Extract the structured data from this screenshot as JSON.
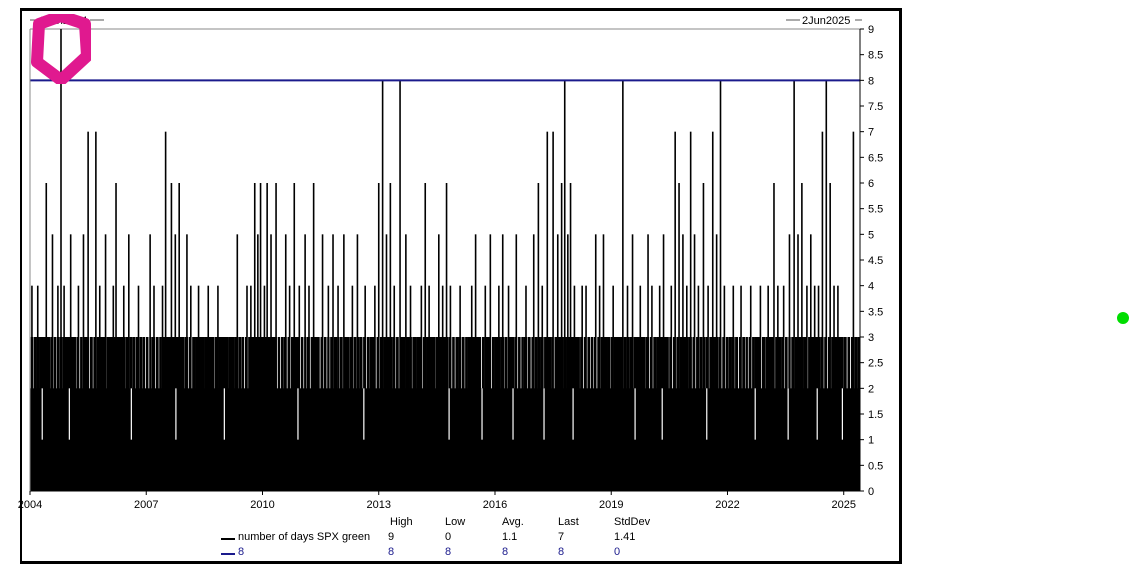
{
  "chart_data": {
    "type": "bar",
    "range_labels": {
      "start": "1Jan2004",
      "end": "2Jun2025"
    },
    "xlim": [
      2004.0,
      2025.42
    ],
    "ylim": [
      0,
      9
    ],
    "x_ticks": [
      {
        "x": 2004,
        "label": "2004"
      },
      {
        "x": 2007,
        "label": "2007"
      },
      {
        "x": 2010,
        "label": "2010"
      },
      {
        "x": 2013,
        "label": "2013"
      },
      {
        "x": 2016,
        "label": "2016"
      },
      {
        "x": 2019,
        "label": "2019"
      },
      {
        "x": 2022,
        "label": "2022"
      },
      {
        "x": 2025,
        "label": "2025"
      }
    ],
    "y_ticks": [
      "0",
      "0.5",
      "1",
      "1.5",
      "2",
      "2.5",
      "3",
      "3.5",
      "4",
      "4.5",
      "5",
      "5.5",
      "6",
      "6.5",
      "7",
      "7.5",
      "8",
      "8.5",
      "9"
    ],
    "series": [
      {
        "name": "number of days SPX green",
        "color": "#000000",
        "baseline": 2,
        "spikes": [
          [
            2004.05,
            4
          ],
          [
            2004.12,
            3
          ],
          [
            2004.2,
            4
          ],
          [
            2004.27,
            2
          ],
          [
            2004.35,
            3
          ],
          [
            2004.42,
            6
          ],
          [
            2004.5,
            3
          ],
          [
            2004.58,
            5
          ],
          [
            2004.65,
            3
          ],
          [
            2004.72,
            4
          ],
          [
            2004.8,
            9
          ],
          [
            2004.88,
            4
          ],
          [
            2004.95,
            3
          ],
          [
            2005.05,
            5
          ],
          [
            2005.15,
            3
          ],
          [
            2005.25,
            4
          ],
          [
            2005.38,
            5
          ],
          [
            2005.5,
            7
          ],
          [
            2005.6,
            3
          ],
          [
            2005.7,
            7
          ],
          [
            2005.8,
            4
          ],
          [
            2005.95,
            5
          ],
          [
            2006.05,
            3
          ],
          [
            2006.15,
            4
          ],
          [
            2006.22,
            6
          ],
          [
            2006.32,
            3
          ],
          [
            2006.42,
            4
          ],
          [
            2006.55,
            5
          ],
          [
            2006.68,
            3
          ],
          [
            2006.8,
            4
          ],
          [
            2006.95,
            3
          ],
          [
            2007.1,
            5
          ],
          [
            2007.2,
            4
          ],
          [
            2007.3,
            3
          ],
          [
            2007.42,
            4
          ],
          [
            2007.5,
            7
          ],
          [
            2007.58,
            3
          ],
          [
            2007.65,
            6
          ],
          [
            2007.75,
            5
          ],
          [
            2007.85,
            6
          ],
          [
            2007.95,
            3
          ],
          [
            2008.05,
            5
          ],
          [
            2008.15,
            4
          ],
          [
            2008.25,
            3
          ],
          [
            2008.35,
            4
          ],
          [
            2008.45,
            3
          ],
          [
            2008.6,
            4
          ],
          [
            2008.72,
            3
          ],
          [
            2008.85,
            4
          ],
          [
            2008.95,
            3
          ],
          [
            2009.1,
            3
          ],
          [
            2009.22,
            3
          ],
          [
            2009.35,
            5
          ],
          [
            2009.5,
            3
          ],
          [
            2009.6,
            4
          ],
          [
            2009.7,
            4
          ],
          [
            2009.8,
            6
          ],
          [
            2009.88,
            5
          ],
          [
            2009.95,
            6
          ],
          [
            2010.05,
            4
          ],
          [
            2010.12,
            6
          ],
          [
            2010.22,
            5
          ],
          [
            2010.35,
            6
          ],
          [
            2010.5,
            3
          ],
          [
            2010.6,
            5
          ],
          [
            2010.7,
            4
          ],
          [
            2010.82,
            6
          ],
          [
            2010.95,
            4
          ],
          [
            2011.1,
            5
          ],
          [
            2011.2,
            4
          ],
          [
            2011.32,
            6
          ],
          [
            2011.45,
            3
          ],
          [
            2011.55,
            5
          ],
          [
            2011.7,
            4
          ],
          [
            2011.82,
            5
          ],
          [
            2011.95,
            4
          ],
          [
            2012.1,
            5
          ],
          [
            2012.2,
            3
          ],
          [
            2012.32,
            4
          ],
          [
            2012.45,
            5
          ],
          [
            2012.55,
            3
          ],
          [
            2012.65,
            4
          ],
          [
            2012.78,
            3
          ],
          [
            2012.9,
            4
          ],
          [
            2013.0,
            6
          ],
          [
            2013.1,
            8
          ],
          [
            2013.2,
            5
          ],
          [
            2013.3,
            6
          ],
          [
            2013.4,
            4
          ],
          [
            2013.55,
            8
          ],
          [
            2013.7,
            5
          ],
          [
            2013.82,
            4
          ],
          [
            2013.95,
            3
          ],
          [
            2014.1,
            4
          ],
          [
            2014.2,
            6
          ],
          [
            2014.3,
            4
          ],
          [
            2014.45,
            3
          ],
          [
            2014.55,
            5
          ],
          [
            2014.65,
            4
          ],
          [
            2014.75,
            6
          ],
          [
            2014.85,
            4
          ],
          [
            2015.0,
            3
          ],
          [
            2015.1,
            4
          ],
          [
            2015.25,
            3
          ],
          [
            2015.4,
            4
          ],
          [
            2015.5,
            5
          ],
          [
            2015.62,
            3
          ],
          [
            2015.75,
            4
          ],
          [
            2015.88,
            5
          ],
          [
            2016.0,
            3
          ],
          [
            2016.1,
            4
          ],
          [
            2016.2,
            5
          ],
          [
            2016.35,
            4
          ],
          [
            2016.45,
            3
          ],
          [
            2016.55,
            5
          ],
          [
            2016.7,
            3
          ],
          [
            2016.8,
            4
          ],
          [
            2016.9,
            3
          ],
          [
            2017.0,
            5
          ],
          [
            2017.12,
            6
          ],
          [
            2017.22,
            4
          ],
          [
            2017.35,
            7
          ],
          [
            2017.5,
            7
          ],
          [
            2017.62,
            5
          ],
          [
            2017.72,
            6
          ],
          [
            2017.8,
            8
          ],
          [
            2017.88,
            5
          ],
          [
            2017.95,
            6
          ],
          [
            2018.05,
            4
          ],
          [
            2018.15,
            3
          ],
          [
            2018.25,
            4
          ],
          [
            2018.35,
            4
          ],
          [
            2018.5,
            3
          ],
          [
            2018.6,
            5
          ],
          [
            2018.7,
            4
          ],
          [
            2018.8,
            5
          ],
          [
            2018.95,
            3
          ],
          [
            2019.05,
            4
          ],
          [
            2019.15,
            3
          ],
          [
            2019.3,
            8
          ],
          [
            2019.42,
            4
          ],
          [
            2019.55,
            5
          ],
          [
            2019.65,
            3
          ],
          [
            2019.75,
            4
          ],
          [
            2019.85,
            3
          ],
          [
            2019.95,
            5
          ],
          [
            2020.05,
            4
          ],
          [
            2020.15,
            3
          ],
          [
            2020.25,
            4
          ],
          [
            2020.35,
            5
          ],
          [
            2020.45,
            3
          ],
          [
            2020.55,
            4
          ],
          [
            2020.65,
            7
          ],
          [
            2020.75,
            6
          ],
          [
            2020.85,
            5
          ],
          [
            2020.95,
            4
          ],
          [
            2021.05,
            7
          ],
          [
            2021.15,
            5
          ],
          [
            2021.25,
            4
          ],
          [
            2021.38,
            6
          ],
          [
            2021.5,
            4
          ],
          [
            2021.62,
            7
          ],
          [
            2021.72,
            5
          ],
          [
            2021.82,
            8
          ],
          [
            2021.92,
            4
          ],
          [
            2022.05,
            3
          ],
          [
            2022.15,
            4
          ],
          [
            2022.25,
            3
          ],
          [
            2022.35,
            4
          ],
          [
            2022.5,
            3
          ],
          [
            2022.6,
            4
          ],
          [
            2022.72,
            3
          ],
          [
            2022.85,
            4
          ],
          [
            2022.95,
            3
          ],
          [
            2023.05,
            4
          ],
          [
            2023.2,
            6
          ],
          [
            2023.3,
            4
          ],
          [
            2023.45,
            4
          ],
          [
            2023.6,
            5
          ],
          [
            2023.72,
            8
          ],
          [
            2023.82,
            5
          ],
          [
            2023.92,
            6
          ],
          [
            2024.05,
            4
          ],
          [
            2024.15,
            5
          ],
          [
            2024.25,
            4
          ],
          [
            2024.35,
            4
          ],
          [
            2024.45,
            7
          ],
          [
            2024.55,
            8
          ],
          [
            2024.65,
            6
          ],
          [
            2024.75,
            4
          ],
          [
            2024.85,
            4
          ],
          [
            2024.95,
            3
          ],
          [
            2025.05,
            3
          ],
          [
            2025.15,
            2
          ],
          [
            2025.25,
            7
          ]
        ],
        "dips": [
          [
            2004.3,
            1
          ],
          [
            2005.0,
            1
          ],
          [
            2006.6,
            1
          ],
          [
            2007.75,
            1
          ],
          [
            2009.0,
            1
          ],
          [
            2010.9,
            1
          ],
          [
            2012.6,
            1
          ],
          [
            2014.8,
            1
          ],
          [
            2015.65,
            1
          ],
          [
            2016.45,
            1
          ],
          [
            2017.25,
            1
          ],
          [
            2018.0,
            1
          ],
          [
            2019.6,
            1
          ],
          [
            2020.3,
            1
          ],
          [
            2021.45,
            1
          ],
          [
            2022.7,
            1
          ],
          [
            2023.55,
            1
          ],
          [
            2024.3,
            1
          ],
          [
            2024.95,
            1
          ]
        ]
      },
      {
        "name": "8",
        "color": "#1a1a8c",
        "constant": 8
      }
    ],
    "stats": {
      "headers": [
        "High",
        "Low",
        "Avg.",
        "Last",
        "StdDev"
      ],
      "rows": [
        {
          "name": "number of days SPX green",
          "values": [
            "9",
            "0",
            "1.1",
            "7",
            "1.41"
          ],
          "color": "#000000"
        },
        {
          "name": "8",
          "values": [
            "8",
            "8",
            "8",
            "8",
            "0"
          ],
          "color": "#1a1a8c"
        }
      ]
    }
  },
  "ui": {
    "green_dot_color": "#00dd00",
    "marker_color": "#e0198f"
  }
}
